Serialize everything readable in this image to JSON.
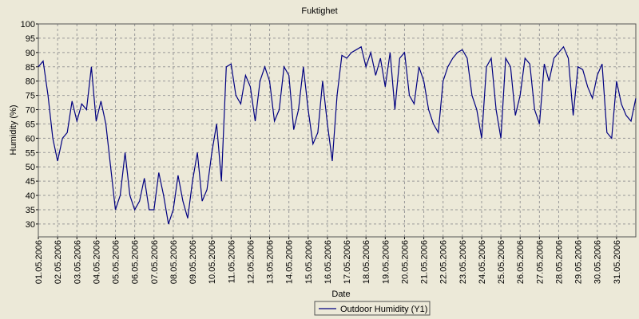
{
  "chart_data": {
    "type": "line",
    "title": "Fuktighet",
    "x_label": "Date",
    "y_label": "Humidity (%)",
    "categories": [
      "01.05.2006",
      null,
      null,
      null,
      "02.05.2006",
      null,
      null,
      null,
      "03.05.2006",
      null,
      null,
      null,
      "04.05.2006",
      null,
      null,
      null,
      "05.05.2006",
      null,
      null,
      null,
      "06.05.2006",
      null,
      null,
      null,
      "07.05.2006",
      null,
      null,
      null,
      "08.05.2006",
      null,
      null,
      null,
      "09.05.2006",
      null,
      null,
      null,
      "10.05.2006",
      null,
      null,
      null,
      "11.05.2006",
      null,
      null,
      null,
      "12.05.2006",
      null,
      null,
      null,
      "13.05.2006",
      null,
      null,
      null,
      "14.05.2006",
      null,
      null,
      null,
      "15.05.2006",
      null,
      null,
      null,
      "16.05.2006",
      null,
      null,
      null,
      "17.05.2006",
      null,
      null,
      null,
      "18.05.2006",
      null,
      null,
      null,
      "19.05.2006",
      null,
      null,
      null,
      "20.05.2006",
      null,
      null,
      null,
      "21.05.2006",
      null,
      null,
      null,
      "22.05.2006",
      null,
      null,
      null,
      "23.05.2006",
      null,
      null,
      null,
      "24.05.2006",
      null,
      null,
      null,
      "25.05.2006",
      null,
      null,
      null,
      "26.05.2006",
      null,
      null,
      null,
      "27.05.2006",
      null,
      null,
      null,
      "28.05.2006",
      null,
      null,
      null,
      "29.05.2006",
      null,
      null,
      null,
      "30.05.2006",
      null,
      null,
      null,
      "31.05.2006",
      null,
      null,
      null,
      null
    ],
    "series": [
      {
        "name": "Outdoor Humidity (Y1)",
        "color": "#000080",
        "values": [
          85,
          87,
          75,
          60,
          52,
          60,
          62,
          73,
          66,
          72,
          70,
          85,
          66,
          73,
          65,
          50,
          35,
          40,
          55,
          40,
          35,
          38,
          46,
          35,
          35,
          48,
          40,
          30,
          35,
          47,
          38,
          32,
          45,
          55,
          38,
          42,
          55,
          65,
          45,
          85,
          86,
          75,
          72,
          82,
          78,
          66,
          80,
          85,
          80,
          66,
          70,
          85,
          82,
          63,
          70,
          85,
          70,
          58,
          62,
          80,
          65,
          52,
          75,
          89,
          88,
          90,
          91,
          92,
          85,
          90,
          82,
          88,
          78,
          90,
          70,
          88,
          90,
          75,
          72,
          85,
          80,
          70,
          65,
          62,
          80,
          85,
          88,
          90,
          91,
          88,
          75,
          70,
          60,
          85,
          88,
          70,
          60,
          88,
          85,
          68,
          75,
          88,
          86,
          70,
          65,
          86,
          80,
          88,
          90,
          92,
          88,
          68,
          85,
          84,
          78,
          74,
          82,
          86,
          62,
          60,
          80,
          72,
          68,
          66,
          74
        ]
      }
    ],
    "ylim": [
      25.5,
      100
    ],
    "yticks": [
      30,
      35,
      40,
      45,
      50,
      55,
      60,
      65,
      70,
      75,
      80,
      85,
      90,
      95,
      100
    ],
    "grid": true
  }
}
